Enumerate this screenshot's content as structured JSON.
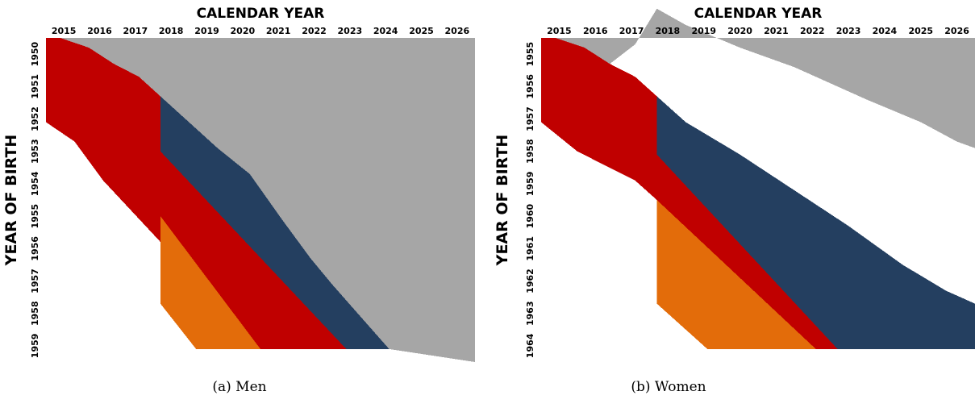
{
  "chart_data": [
    {
      "type": "heatmap",
      "caption": "(a) Men",
      "xlabel": "CALENDAR YEAR",
      "ylabel": "YEAR OF BIRTH",
      "x_ticks": [
        "2015",
        "2016",
        "2017",
        "2018",
        "2019",
        "2020",
        "2021",
        "2022",
        "2023",
        "2024",
        "2025",
        "2026"
      ],
      "y_ticks": [
        "1950",
        "1951",
        "1952",
        "1953",
        "1954",
        "1955",
        "1956",
        "1957",
        "1958",
        "1959"
      ],
      "xlim": [
        2015,
        2027
      ],
      "ylim": [
        1950,
        1960
      ],
      "regions": [
        {
          "color": "#a6a6a6",
          "points": [
            [
              2015.4,
              1950
            ],
            [
              2027,
              1950
            ],
            [
              2027,
              1960
            ],
            [
              2024.6,
              1959.6
            ],
            [
              2023.8,
              1958.6
            ],
            [
              2023,
              1957.6
            ],
            [
              2022.4,
              1956.8
            ],
            [
              2021.6,
              1955.6
            ],
            [
              2020.7,
              1954.2
            ],
            [
              2019.8,
              1953.4
            ],
            [
              2019,
              1952.6
            ],
            [
              2018.2,
              1951.8
            ],
            [
              2017.6,
              1951.2
            ],
            [
              2016.9,
              1950.8
            ],
            [
              2016.2,
              1950.3
            ]
          ]
        },
        {
          "color": "#c00000",
          "points": [
            [
              2015,
              1950
            ],
            [
              2015.4,
              1950
            ],
            [
              2016.2,
              1950.3
            ],
            [
              2016.9,
              1950.8
            ],
            [
              2017.6,
              1951.2
            ],
            [
              2018.2,
              1951.8
            ],
            [
              2018.2,
              1953.5
            ],
            [
              2023.4,
              1959.6
            ],
            [
              2021.0,
              1959.6
            ],
            [
              2016.6,
              1954.4
            ],
            [
              2015.8,
              1953.2
            ],
            [
              2015,
              1952.6
            ]
          ]
        },
        {
          "color": "#243f60",
          "points": [
            [
              2018.2,
              1951.8
            ],
            [
              2019,
              1952.6
            ],
            [
              2019.8,
              1953.4
            ],
            [
              2020.7,
              1954.2
            ],
            [
              2021.6,
              1955.6
            ],
            [
              2022.4,
              1956.8
            ],
            [
              2023,
              1957.6
            ],
            [
              2023.8,
              1958.6
            ],
            [
              2024.6,
              1959.6
            ],
            [
              2023.4,
              1959.6
            ],
            [
              2018.2,
              1953.5
            ]
          ]
        },
        {
          "color": "#e36c0a",
          "points": [
            [
              2018.2,
              1955.5
            ],
            [
              2021.0,
              1959.6
            ],
            [
              2019.2,
              1959.6
            ],
            [
              2018.2,
              1958.2
            ]
          ]
        }
      ]
    },
    {
      "type": "heatmap",
      "caption": "(b) Women",
      "xlabel": "CALENDAR YEAR",
      "ylabel": "YEAR OF BIRTH",
      "x_ticks": [
        "2015",
        "2016",
        "2017",
        "2018",
        "2019",
        "2020",
        "2021",
        "2022",
        "2023",
        "2024",
        "2025",
        "2026"
      ],
      "y_ticks": [
        "1955",
        "1956",
        "1957",
        "1958",
        "1959",
        "1960",
        "1961",
        "1962",
        "1963",
        "1964"
      ],
      "xlim": [
        2015,
        2027
      ],
      "ylim": [
        1955,
        1965
      ],
      "regions": [
        {
          "color": "#a6a6a6",
          "points": [
            [
              2015.4,
              1955
            ],
            [
              2027,
              1955
            ],
            [
              2027,
              1958.4
            ],
            [
              2026.5,
              1958.2
            ],
            [
              2025.5,
              1957.6
            ],
            [
              2024.0,
              1956.9
            ],
            [
              2022.0,
              1955.9
            ],
            [
              2020.5,
              1955.3
            ],
            [
              2019.0,
              1954.6
            ],
            [
              2018.2,
              1954.1
            ],
            [
              2017.6,
              1955.2
            ],
            [
              2016.9,
              1955.8
            ],
            [
              2016.2,
              1955.3
            ]
          ]
        },
        {
          "color": "#c00000",
          "points": [
            [
              2015,
              1955
            ],
            [
              2015.4,
              1955
            ],
            [
              2016.2,
              1955.3
            ],
            [
              2016.9,
              1955.8
            ],
            [
              2017.6,
              1956.2
            ],
            [
              2018.2,
              1956.8
            ],
            [
              2018.2,
              1958.6
            ],
            [
              2023.2,
              1964.6
            ],
            [
              2022.6,
              1964.6
            ],
            [
              2018.2,
              1960.0
            ],
            [
              2017.6,
              1959.4
            ],
            [
              2016.0,
              1958.5
            ],
            [
              2015,
              1957.6
            ]
          ]
        },
        {
          "color": "#243f60",
          "points": [
            [
              2018.2,
              1956.8
            ],
            [
              2019,
              1957.6
            ],
            [
              2020.5,
              1958.6
            ],
            [
              2022.0,
              1959.7
            ],
            [
              2023.5,
              1960.8
            ],
            [
              2025.0,
              1962.0
            ],
            [
              2026.2,
              1962.8
            ],
            [
              2027,
              1963.2
            ],
            [
              2027,
              1964.6
            ],
            [
              2023.2,
              1964.6
            ],
            [
              2018.2,
              1958.6
            ]
          ]
        },
        {
          "color": "#e36c0a",
          "points": [
            [
              2018.2,
              1960.0
            ],
            [
              2022.6,
              1964.6
            ],
            [
              2019.6,
              1964.6
            ],
            [
              2018.2,
              1963.2
            ]
          ]
        }
      ]
    }
  ]
}
